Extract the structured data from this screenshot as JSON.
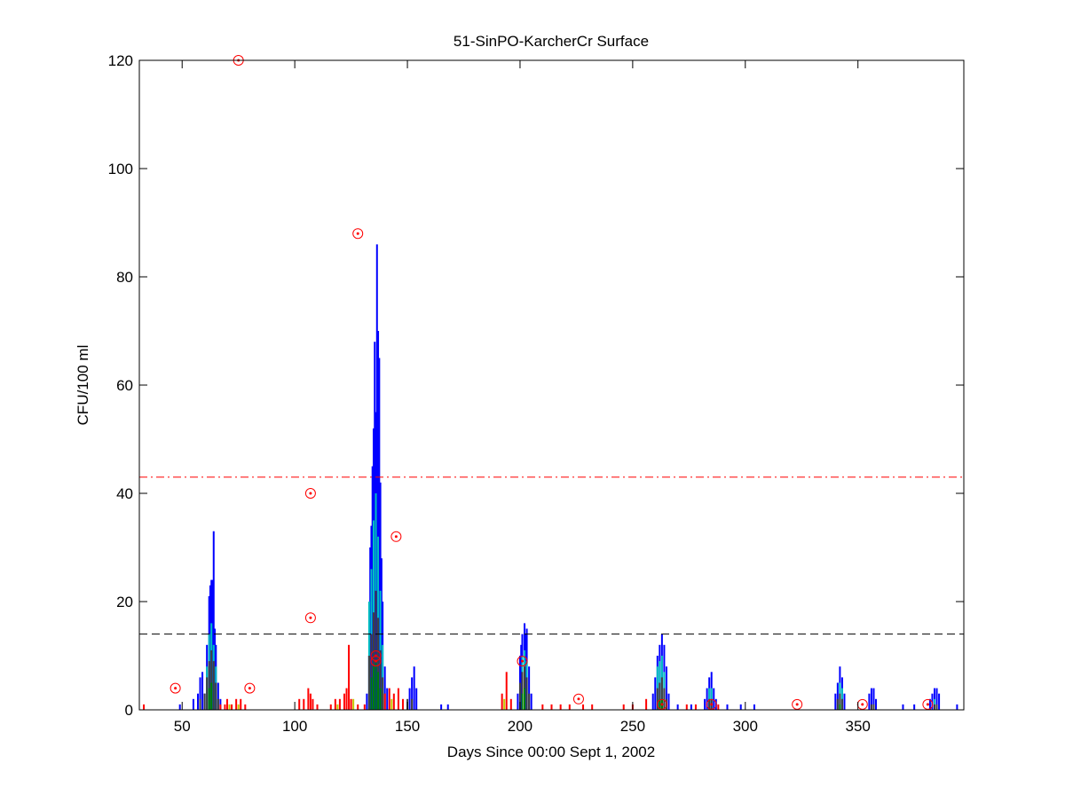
{
  "chart_data": {
    "type": "bar",
    "title": "51-SinPO-KarcherCr Surface",
    "xlabel": "Days Since 00:00 Sept 1, 2002",
    "ylabel": "CFU/100 ml",
    "xlim": [
      31,
      397
    ],
    "ylim": [
      0,
      120
    ],
    "xticks": [
      50,
      100,
      150,
      200,
      250,
      300,
      350
    ],
    "yticks": [
      0,
      20,
      40,
      60,
      80,
      100,
      120
    ],
    "grid": false,
    "reference_lines": [
      {
        "name": "upper-threshold",
        "value": 43,
        "style": "dash-dot",
        "color": "#ff0000"
      },
      {
        "name": "lower-threshold",
        "value": 14,
        "style": "dashed",
        "color": "#000000"
      }
    ],
    "series": [
      {
        "name": "model-blue",
        "color": "#0000ff",
        "points": [
          [
            49,
            1
          ],
          [
            55,
            2
          ],
          [
            57,
            3
          ],
          [
            58,
            6
          ],
          [
            59,
            7
          ],
          [
            60,
            3
          ],
          [
            61,
            12
          ],
          [
            62,
            21
          ],
          [
            62.5,
            23
          ],
          [
            63,
            24
          ],
          [
            63.5,
            24
          ],
          [
            64,
            33
          ],
          [
            64.5,
            15
          ],
          [
            65,
            12
          ],
          [
            66,
            5
          ],
          [
            67,
            2
          ],
          [
            132,
            3
          ],
          [
            133,
            10
          ],
          [
            133.5,
            30
          ],
          [
            134,
            34
          ],
          [
            134.5,
            45
          ],
          [
            135,
            52
          ],
          [
            135.5,
            68
          ],
          [
            136,
            55
          ],
          [
            136.5,
            86
          ],
          [
            137,
            70
          ],
          [
            137.5,
            65
          ],
          [
            138,
            42
          ],
          [
            138.5,
            28
          ],
          [
            139,
            20
          ],
          [
            140,
            8
          ],
          [
            141,
            4
          ],
          [
            151,
            4
          ],
          [
            152,
            6
          ],
          [
            153,
            8
          ],
          [
            154,
            4
          ],
          [
            165,
            1
          ],
          [
            168,
            1
          ],
          [
            199,
            3
          ],
          [
            200,
            10
          ],
          [
            200.5,
            12
          ],
          [
            201,
            14
          ],
          [
            202,
            16
          ],
          [
            202.5,
            14
          ],
          [
            203,
            15
          ],
          [
            204,
            8
          ],
          [
            205,
            3
          ],
          [
            259,
            3
          ],
          [
            260,
            6
          ],
          [
            261,
            10
          ],
          [
            262,
            12
          ],
          [
            263,
            14
          ],
          [
            264,
            12
          ],
          [
            265,
            8
          ],
          [
            266,
            3
          ],
          [
            270,
            1
          ],
          [
            276,
            1
          ],
          [
            282,
            2
          ],
          [
            283,
            4
          ],
          [
            284,
            6
          ],
          [
            285,
            7
          ],
          [
            286,
            4
          ],
          [
            287,
            2
          ],
          [
            292,
            1
          ],
          [
            298,
            1
          ],
          [
            304,
            1
          ],
          [
            340,
            3
          ],
          [
            341,
            5
          ],
          [
            342,
            8
          ],
          [
            343,
            6
          ],
          [
            344,
            3
          ],
          [
            355,
            3
          ],
          [
            356,
            4
          ],
          [
            357,
            4
          ],
          [
            358,
            2
          ],
          [
            370,
            1
          ],
          [
            375,
            1
          ],
          [
            382,
            2
          ],
          [
            383,
            3
          ],
          [
            384,
            4
          ],
          [
            385,
            4
          ],
          [
            386,
            3
          ],
          [
            394,
            1
          ]
        ]
      },
      {
        "name": "model-cyan",
        "color": "#00c0c0",
        "points": [
          [
            61,
            8
          ],
          [
            62,
            14
          ],
          [
            63,
            16
          ],
          [
            64,
            12
          ],
          [
            65,
            8
          ],
          [
            133,
            20
          ],
          [
            134,
            26
          ],
          [
            135,
            35
          ],
          [
            136,
            40
          ],
          [
            137,
            32
          ],
          [
            138,
            22
          ],
          [
            139,
            12
          ],
          [
            201,
            10
          ],
          [
            202,
            11
          ],
          [
            203,
            9
          ],
          [
            261,
            8
          ],
          [
            262,
            9
          ],
          [
            263,
            10
          ],
          [
            264,
            7
          ],
          [
            284,
            4
          ],
          [
            285,
            4
          ],
          [
            342,
            5
          ],
          [
            343,
            4
          ],
          [
            384,
            2
          ]
        ]
      },
      {
        "name": "model-gray",
        "color": "#404040",
        "points": [
          [
            58,
            2
          ],
          [
            60,
            3
          ],
          [
            61,
            6
          ],
          [
            62,
            9
          ],
          [
            63,
            11
          ],
          [
            64,
            9
          ],
          [
            65,
            5
          ],
          [
            66,
            2
          ],
          [
            133,
            10
          ],
          [
            134,
            14
          ],
          [
            135,
            18
          ],
          [
            136,
            22
          ],
          [
            137,
            17
          ],
          [
            138,
            11
          ],
          [
            139,
            6
          ],
          [
            140,
            3
          ],
          [
            150,
            2
          ],
          [
            152,
            2
          ],
          [
            200,
            5
          ],
          [
            201,
            7
          ],
          [
            202,
            8
          ],
          [
            203,
            6
          ],
          [
            204,
            3
          ],
          [
            261,
            4
          ],
          [
            262,
            5
          ],
          [
            263,
            6
          ],
          [
            264,
            4
          ],
          [
            265,
            2
          ],
          [
            284,
            2
          ],
          [
            285,
            2
          ],
          [
            341,
            2
          ],
          [
            342,
            3
          ],
          [
            343,
            2
          ],
          [
            356,
            1
          ],
          [
            357,
            1
          ],
          [
            384,
            1
          ],
          [
            385,
            1
          ]
        ]
      },
      {
        "name": "model-green",
        "color": "#008000",
        "points": [
          [
            62,
            4
          ],
          [
            63,
            5
          ],
          [
            134,
            6
          ],
          [
            135,
            8
          ],
          [
            136,
            9
          ],
          [
            137,
            7
          ],
          [
            138,
            4
          ],
          [
            201,
            3
          ],
          [
            202,
            4
          ],
          [
            262,
            2
          ],
          [
            263,
            2
          ],
          [
            342,
            1
          ]
        ]
      },
      {
        "name": "model-red",
        "color": "#ff0000",
        "points": [
          [
            33,
            1
          ],
          [
            67,
            1
          ],
          [
            69,
            1
          ],
          [
            70,
            2
          ],
          [
            72,
            1
          ],
          [
            74,
            2
          ],
          [
            76,
            2
          ],
          [
            78,
            1
          ],
          [
            102,
            2
          ],
          [
            104,
            2
          ],
          [
            106,
            4
          ],
          [
            107,
            3
          ],
          [
            108,
            2
          ],
          [
            110,
            1
          ],
          [
            116,
            1
          ],
          [
            118,
            2
          ],
          [
            120,
            2
          ],
          [
            122,
            3
          ],
          [
            123,
            4
          ],
          [
            124,
            12
          ],
          [
            125,
            2
          ],
          [
            128,
            1
          ],
          [
            131,
            1
          ],
          [
            140,
            3
          ],
          [
            142,
            4
          ],
          [
            144,
            3
          ],
          [
            146,
            4
          ],
          [
            148,
            2
          ],
          [
            192,
            3
          ],
          [
            194,
            7
          ],
          [
            196,
            2
          ],
          [
            210,
            1
          ],
          [
            214,
            1
          ],
          [
            218,
            1
          ],
          [
            222,
            1
          ],
          [
            228,
            1
          ],
          [
            232,
            1
          ],
          [
            246,
            1
          ],
          [
            250,
            1
          ],
          [
            256,
            2
          ],
          [
            274,
            1
          ],
          [
            278,
            1
          ],
          [
            288,
            1
          ]
        ]
      },
      {
        "name": "model-yellow",
        "color": "#c8c800",
        "points": [
          [
            71,
            1
          ],
          [
            75,
            1
          ],
          [
            119,
            1
          ],
          [
            126,
            2
          ],
          [
            143,
            2
          ],
          [
            193,
            2
          ]
        ]
      }
    ],
    "observations": {
      "name": "observed",
      "color": "#ff0000",
      "marker": "circle-dot",
      "points": [
        [
          47,
          4
        ],
        [
          75,
          120
        ],
        [
          80,
          4
        ],
        [
          107,
          40
        ],
        [
          107,
          17
        ],
        [
          128,
          88
        ],
        [
          145,
          32
        ],
        [
          136,
          9
        ],
        [
          136,
          10
        ],
        [
          201,
          9
        ],
        [
          226,
          2
        ],
        [
          263,
          1
        ],
        [
          285,
          1
        ],
        [
          323,
          1
        ],
        [
          352,
          1
        ],
        [
          381,
          1
        ]
      ]
    }
  }
}
